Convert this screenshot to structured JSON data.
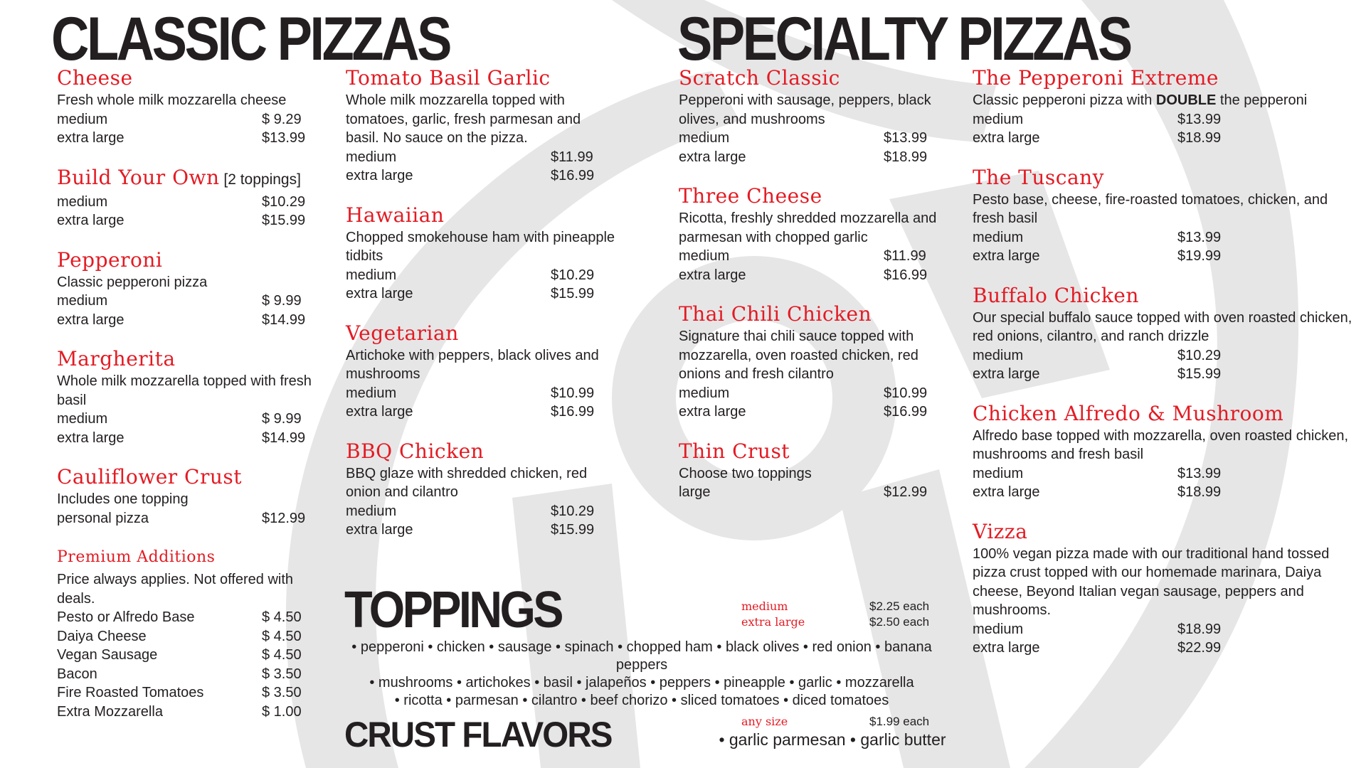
{
  "colors": {
    "accent_red": "#e31b23",
    "text": "#231f20",
    "background": "#ffffff",
    "watermark": "#e6e6e7"
  },
  "headings": {
    "classic": "CLASSIC PIZZAS",
    "specialty": "SPECIALTY PIZZAS",
    "toppings": "TOPPINGS",
    "crust": "CRUST FLAVORS"
  },
  "columns": [
    [
      {
        "title": "Cheese",
        "desc": "Fresh whole milk mozzarella cheese",
        "prices": [
          [
            "medium",
            "$  9.29"
          ],
          [
            "extra large",
            "$13.99"
          ]
        ]
      },
      {
        "title": "Build Your Own",
        "suffix": " [2 toppings]",
        "prices": [
          [
            "medium",
            "$10.29"
          ],
          [
            "extra large",
            "$15.99"
          ]
        ]
      },
      {
        "title": "Pepperoni",
        "desc": "Classic pepperoni pizza",
        "prices": [
          [
            "medium",
            "$  9.99"
          ],
          [
            "extra large",
            "$14.99"
          ]
        ]
      },
      {
        "title": "Margherita",
        "desc": "Whole milk mozzarella topped with fresh basil",
        "prices": [
          [
            "medium",
            "$  9.99"
          ],
          [
            "extra large",
            "$14.99"
          ]
        ]
      },
      {
        "title": "Cauliflower Crust",
        "desc": "Includes one topping",
        "prices": [
          [
            "personal pizza",
            "$12.99"
          ]
        ]
      },
      {
        "title": "Premium Additions",
        "small": true,
        "desc": "Price always applies. Not offered with deals.",
        "prices": [
          [
            "Pesto or Alfredo Base",
            "$  4.50"
          ],
          [
            "Daiya Cheese",
            "$  4.50"
          ],
          [
            "Vegan Sausage",
            "$  4.50"
          ],
          [
            "Bacon",
            "$  3.50"
          ],
          [
            "Fire Roasted Tomatoes",
            "$  3.50"
          ],
          [
            "Extra Mozzarella",
            "$  1.00"
          ]
        ]
      }
    ],
    [
      {
        "title": "Tomato Basil Garlic",
        "desc": "Whole milk mozzarella topped with tomatoes, garlic, fresh parmesan and basil. No sauce on the pizza.",
        "prices": [
          [
            "medium",
            "$11.99"
          ],
          [
            "extra large",
            "$16.99"
          ]
        ]
      },
      {
        "title": "Hawaiian",
        "desc": "Chopped smokehouse ham with pineapple tidbits",
        "prices": [
          [
            "medium",
            "$10.29"
          ],
          [
            "extra large",
            "$15.99"
          ]
        ]
      },
      {
        "title": "Vegetarian",
        "desc": "Artichoke with peppers, black olives and mushrooms",
        "prices": [
          [
            "medium",
            "$10.99"
          ],
          [
            "extra large",
            "$16.99"
          ]
        ]
      },
      {
        "title": "BBQ Chicken",
        "desc": "BBQ glaze with shredded chicken, red onion and cilantro",
        "prices": [
          [
            "medium",
            "$10.29"
          ],
          [
            "extra large",
            "$15.99"
          ]
        ]
      }
    ],
    [
      {
        "title": "Scratch Classic",
        "desc": "Pepperoni with sausage, peppers, black olives, and mushrooms",
        "prices": [
          [
            "medium",
            "$13.99"
          ],
          [
            "extra large",
            "$18.99"
          ]
        ]
      },
      {
        "title": "Three Cheese",
        "desc": "Ricotta, freshly shredded mozzarella and parmesan with chopped garlic",
        "prices": [
          [
            "medium",
            "$11.99"
          ],
          [
            "extra large",
            "$16.99"
          ]
        ]
      },
      {
        "title": "Thai Chili Chicken",
        "desc": "Signature thai chili sauce topped with mozzarella, oven roasted chicken, red onions and fresh cilantro",
        "prices": [
          [
            "medium",
            "$10.99"
          ],
          [
            "extra large",
            "$16.99"
          ]
        ]
      },
      {
        "title": "Thin Crust",
        "desc": "Choose two toppings",
        "prices": [
          [
            "large",
            "$12.99"
          ]
        ]
      }
    ],
    [
      {
        "title": "The Pepperoni Extreme",
        "desc": [
          {
            "t": "Classic pepperoni pizza with "
          },
          {
            "t": "DOUBLE",
            "b": true
          },
          {
            "t": " the pepperoni"
          }
        ],
        "prices": [
          [
            "medium",
            "$13.99"
          ],
          [
            "extra large",
            "$18.99"
          ]
        ]
      },
      {
        "title": "The Tuscany",
        "desc": "Pesto base, cheese, fire-roasted tomatoes, chicken, and fresh basil",
        "prices": [
          [
            "medium",
            "$13.99"
          ],
          [
            "extra large",
            "$19.99"
          ]
        ]
      },
      {
        "title": "Buffalo Chicken",
        "desc": "Our special buffalo sauce topped with oven roasted chicken, red onions, cilantro, and ranch drizzle",
        "prices": [
          [
            "medium",
            "$10.29"
          ],
          [
            "extra large",
            "$15.99"
          ]
        ]
      },
      {
        "title": "Chicken Alfredo & Mushroom",
        "desc": "Alfredo base topped with mozzarella, oven roasted chicken, mushrooms and fresh basil",
        "prices": [
          [
            "medium",
            "$13.99"
          ],
          [
            "extra large",
            "$18.99"
          ]
        ]
      },
      {
        "title": "Vizza",
        "desc": "100% vegan pizza made with our traditional hand tossed pizza crust topped with our homemade marinara, Daiya cheese, Beyond Italian vegan sausage, peppers and mushrooms.",
        "prices": [
          [
            "medium",
            "$18.99"
          ],
          [
            "extra large",
            "$22.99"
          ]
        ]
      }
    ]
  ],
  "toppings": {
    "prices": [
      [
        "medium",
        "$2.25 each"
      ],
      [
        "extra large",
        "$2.50 each"
      ]
    ],
    "lines": [
      "• pepperoni • chicken • sausage • spinach • chopped ham • black olives • red onion • banana peppers",
      "• mushrooms • artichokes • basil • jalapeños • peppers • pineapple • garlic • mozzarella",
      "• ricotta • parmesan • cilantro • beef chorizo • sliced tomatoes • diced tomatoes"
    ]
  },
  "crust": {
    "prices": [
      [
        "any size",
        "$1.99 each"
      ]
    ],
    "list": "• garlic parmesan • garlic butter"
  }
}
